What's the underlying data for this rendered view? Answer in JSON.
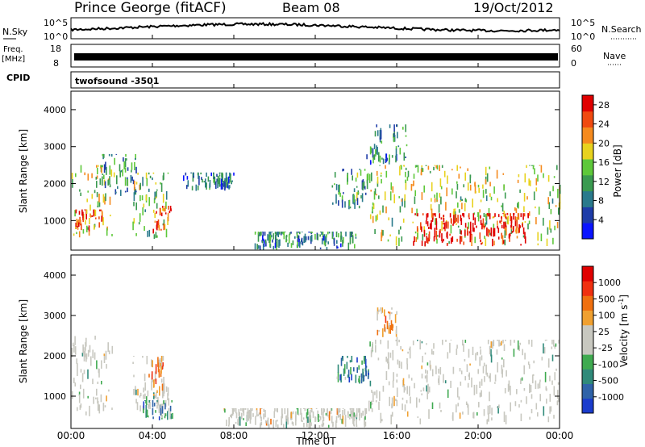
{
  "header": {
    "station": "Prince George (fitACF)",
    "beam": "Beam 08",
    "date": "19/Oct/2012"
  },
  "noise_panel": {
    "left_label": "N.Sky",
    "left_ticks": [
      "10^5",
      "10^0"
    ],
    "right_label": "N.Search",
    "right_ticks": [
      "10^5",
      "10^0"
    ]
  },
  "freq_panel": {
    "left_label_1": "Freq.",
    "left_label_2": "[MHz]",
    "left_ticks": [
      "18",
      "8"
    ],
    "right_label": "Nave",
    "right_ticks": [
      "60",
      "0"
    ]
  },
  "cpid": {
    "label": "CPID",
    "program": "twofsound  -3501"
  },
  "colors": {
    "power": [
      "#0a14ff",
      "#1e3ca8",
      "#2a7a8c",
      "#3a9a50",
      "#5ec83a",
      "#e8d21e",
      "#f58a1e",
      "#f04a10",
      "#e00000"
    ],
    "velocity": [
      "#1a3ccc",
      "#2f63a8",
      "#2f8a7a",
      "#3faa50",
      "#c8c8c0",
      "#c8c8c0",
      "#f0a030",
      "#f07010",
      "#f03010",
      "#e00000"
    ]
  },
  "chart_data": [
    {
      "type": "heatmap",
      "name": "power",
      "ylabel": "Slant Range [km]",
      "x_ticks": [
        "00:00",
        "04:00",
        "08:00",
        "12:00",
        "16:00",
        "20:00",
        "00:00"
      ],
      "y_ticks": [
        1000,
        2000,
        3000,
        4000
      ],
      "ylim": [
        200,
        4500
      ],
      "xlim_hours": [
        0,
        24
      ],
      "colorbar": {
        "label": "Power [dB]",
        "ticks": [
          4,
          8,
          12,
          16,
          20,
          24,
          28
        ],
        "range": [
          0,
          30
        ]
      },
      "regions": [
        {
          "t": [
            0.0,
            2.0
          ],
          "r": [
            500,
            2500
          ],
          "level": 0.55
        },
        {
          "t": [
            0.2,
            1.5
          ],
          "r": [
            700,
            1300
          ],
          "level": 0.85
        },
        {
          "t": [
            1.5,
            3.2
          ],
          "r": [
            1500,
            2800
          ],
          "level": 0.35
        },
        {
          "t": [
            3.0,
            4.8
          ],
          "r": [
            500,
            2300
          ],
          "level": 0.45
        },
        {
          "t": [
            4.0,
            4.9
          ],
          "r": [
            600,
            1400
          ],
          "level": 0.9
        },
        {
          "t": [
            5.5,
            8.0
          ],
          "r": [
            1800,
            2300
          ],
          "level": 0.25
        },
        {
          "t": [
            9.0,
            14.0
          ],
          "r": [
            200,
            700
          ],
          "level": 0.3
        },
        {
          "t": [
            12.8,
            14.6
          ],
          "r": [
            1300,
            2400
          ],
          "level": 0.35
        },
        {
          "t": [
            14.6,
            24.0
          ],
          "r": [
            300,
            2500
          ],
          "level": 0.55
        },
        {
          "t": [
            16.8,
            22.5
          ],
          "r": [
            300,
            1200
          ],
          "level": 0.95
        },
        {
          "t": [
            14.5,
            16.5
          ],
          "r": [
            2500,
            3600
          ],
          "level": 0.3
        }
      ]
    },
    {
      "type": "heatmap",
      "name": "velocity",
      "ylabel": "Slant Range [km]",
      "xlabel": "Time UT",
      "x_ticks": [
        "00:00",
        "04:00",
        "08:00",
        "12:00",
        "16:00",
        "20:00",
        "00:00"
      ],
      "y_ticks": [
        1000,
        2000,
        3000,
        4000
      ],
      "ylim": [
        200,
        4500
      ],
      "xlim_hours": [
        0,
        24
      ],
      "colorbar": {
        "label": "Velocity [m s^-1]",
        "ticks": [
          "1000",
          "500",
          "100",
          "25",
          "-25",
          "-100",
          "-500",
          "-1000"
        ]
      },
      "regions": [
        {
          "t": [
            0.0,
            2.0
          ],
          "r": [
            500,
            2500
          ],
          "level": 0.45
        },
        {
          "t": [
            3.0,
            4.8
          ],
          "r": [
            500,
            2000
          ],
          "level": 0.45
        },
        {
          "t": [
            3.8,
            4.6
          ],
          "r": [
            1000,
            2000
          ],
          "level": 0.7
        },
        {
          "t": [
            3.5,
            5.0
          ],
          "r": [
            400,
            900
          ],
          "level": 0.3
        },
        {
          "t": [
            7.5,
            14.5
          ],
          "r": [
            200,
            700
          ],
          "level": 0.5
        },
        {
          "t": [
            13.0,
            14.6
          ],
          "r": [
            1300,
            2000
          ],
          "level": 0.25
        },
        {
          "t": [
            14.6,
            24.0
          ],
          "r": [
            300,
            2400
          ],
          "level": 0.45
        },
        {
          "t": [
            15.0,
            16.0
          ],
          "r": [
            2200,
            3200
          ],
          "level": 0.65
        }
      ]
    }
  ]
}
